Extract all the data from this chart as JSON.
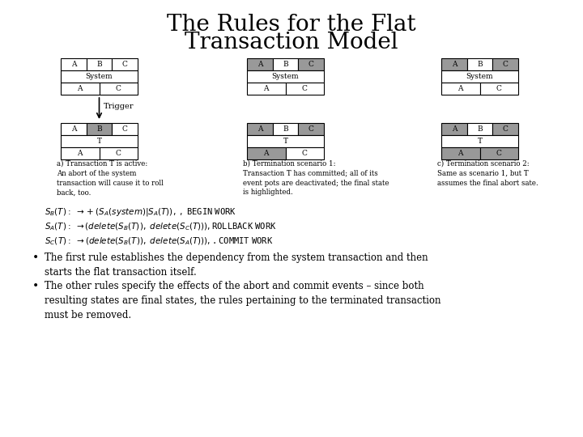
{
  "title_line1": "The Rules for the Flat",
  "title_line2": "Transaction Model",
  "bg_color": "#ffffff",
  "gray_color": "#999999",
  "light_gray": "#bbbbbb",
  "diagram_a": {
    "top_labels": [
      "A",
      "B",
      "C"
    ],
    "top_shading": [
      false,
      false,
      false
    ],
    "mid_label": "System",
    "bot_labels": [
      "A",
      "C"
    ],
    "bot_shading": [
      false,
      false
    ],
    "lower_top_labels": [
      "A",
      "B",
      "C"
    ],
    "lower_top_shading": [
      false,
      true,
      false
    ],
    "lower_mid_label": "T",
    "lower_bot_labels": [
      "A",
      "C"
    ],
    "lower_bot_shading": [
      false,
      false
    ],
    "trigger_text": "Trigger",
    "caption": "a) Transaction T is active:\nAn abort of the system\ntransaction will cause it to roll\nback, too."
  },
  "diagram_b": {
    "top_labels": [
      "A",
      "B",
      "C"
    ],
    "top_shading": [
      true,
      false,
      true
    ],
    "mid_label": "System",
    "bot_labels": [
      "A",
      "C"
    ],
    "bot_shading": [
      false,
      false
    ],
    "lower_top_labels": [
      "A",
      "B",
      "C"
    ],
    "lower_top_shading": [
      true,
      false,
      true
    ],
    "lower_mid_label": "T",
    "lower_bot_labels": [
      "A",
      "C"
    ],
    "lower_bot_shading": [
      true,
      false
    ],
    "caption": "b) Termination scenario 1:\nTransaction T has committed; all of its\nevent pots are deactivated; the final state\nis highlighted."
  },
  "diagram_c": {
    "top_labels": [
      "A",
      "B",
      "C"
    ],
    "top_shading": [
      true,
      false,
      true
    ],
    "mid_label": "System",
    "bot_labels": [
      "A",
      "C"
    ],
    "bot_shading": [
      false,
      false
    ],
    "lower_top_labels": [
      "A",
      "B",
      "C"
    ],
    "lower_top_shading": [
      true,
      false,
      true
    ],
    "lower_mid_label": "T",
    "lower_bot_labels": [
      "A",
      "C"
    ],
    "lower_bot_shading": [
      true,
      true
    ],
    "caption": "c) Termination scenario 2:\nSame as scenario 1, but T\nassumes the final abort sate."
  },
  "formula_lines": [
    "Sᴮ(T):  → +(Sₐ(system)|Sₐ(T)), , BEGIN WORK",
    "Sₐ(T):  → (delete(Sᴮ(T)), delete(Sᶜ(T))),,ROLLBACK WORK",
    "Sᶜ(T):  → (delete(Sᴮ(T)), delete(Sₐ(T))),,.COMMIT WORK"
  ],
  "bullet1": "The first rule establishes the dependency from the system transaction and then\nstarts the flat transaction itself.",
  "bullet2": "The other rules specify the effects of the abort and commit events – since both\nresulting states are final states, the rules pertaining to the terminated transaction\nmust be removed."
}
